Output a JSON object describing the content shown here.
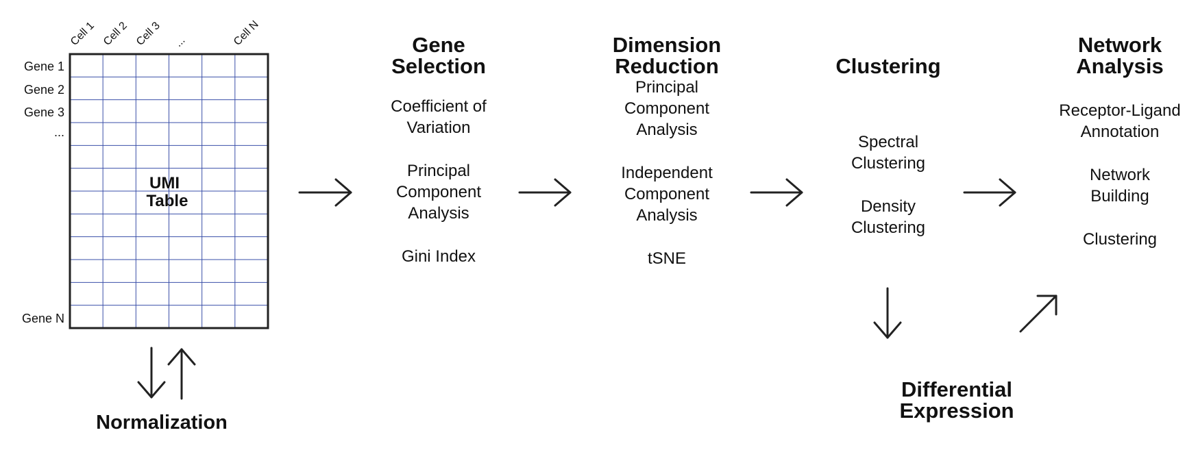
{
  "umi_table": {
    "row_labels": [
      "Gene 1",
      "Gene 2",
      "Gene 3",
      "...",
      "Gene N"
    ],
    "col_labels": [
      "Cell 1",
      "Cell 2",
      "Cell 3",
      "...",
      "Cell N"
    ],
    "title_line1": "UMI",
    "title_line2": "Table",
    "grid_color": "#3a4fa8",
    "border_color": "#222222",
    "grid_rows": 12,
    "grid_cols": 6
  },
  "normalization": {
    "label": "Normalization"
  },
  "steps": [
    {
      "title_line1": "Gene",
      "title_line2": "Selection",
      "items": [
        [
          "Coefficient of",
          "Variation"
        ],
        [
          "Principal",
          "Component",
          "Analysis"
        ],
        [
          "Gini Index"
        ]
      ]
    },
    {
      "title_line1": "Dimension",
      "title_line2": "Reduction",
      "items": [
        [
          "Principal",
          "Component",
          "Analysis"
        ],
        [
          "Independent",
          "Component",
          "Analysis"
        ],
        [
          "tSNE"
        ]
      ]
    },
    {
      "title_line1": "",
      "title_line2": "Clustering",
      "items": [
        [
          "Spectral",
          "Clustering"
        ],
        [
          "Density",
          "Clustering"
        ]
      ]
    },
    {
      "title_line1": "Network",
      "title_line2": "Analysis",
      "items": [
        [
          "Receptor-Ligand",
          "Annotation"
        ],
        [
          "Network",
          "Building"
        ],
        [
          "Clustering"
        ]
      ]
    }
  ],
  "differential": {
    "title_line1": "Differential",
    "title_line2": "Expression"
  },
  "arrow_color": "#222222"
}
